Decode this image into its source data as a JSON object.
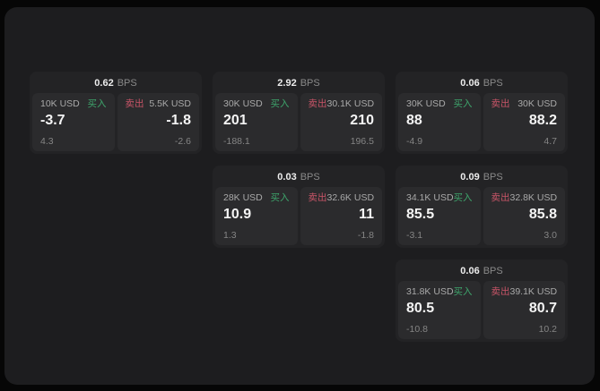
{
  "labels": {
    "bps_unit": "BPS",
    "buy": "买入",
    "sell": "卖出"
  },
  "colors": {
    "outer_background": "#060606",
    "window_background": "#1d1d1f",
    "card_background": "#232325",
    "panel_background": "#2b2b2d",
    "buy_green": "#3ea56c",
    "sell_red": "#c95568",
    "primary_text": "#f4f4f4",
    "muted_text": "#8a8a8a"
  },
  "cards": [
    {
      "col": 1,
      "row": 1,
      "bps": "0.62",
      "buy": {
        "size": "10K USD",
        "price": "-3.7",
        "delta": "4.3"
      },
      "sell": {
        "size": "5.5K USD",
        "price": "-1.8",
        "delta": "-2.6"
      }
    },
    {
      "col": 2,
      "row": 1,
      "bps": "2.92",
      "buy": {
        "size": "30K USD",
        "price": "201",
        "delta": "-188.1"
      },
      "sell": {
        "size": "30.1K USD",
        "price": "210",
        "delta": "196.5"
      }
    },
    {
      "col": 3,
      "row": 1,
      "bps": "0.06",
      "buy": {
        "size": "30K USD",
        "price": "88",
        "delta": "-4.9"
      },
      "sell": {
        "size": "30K USD",
        "price": "88.2",
        "delta": "4.7"
      }
    },
    {
      "col": 2,
      "row": 2,
      "bps": "0.03",
      "buy": {
        "size": "28K USD",
        "price": "10.9",
        "delta": "1.3"
      },
      "sell": {
        "size": "32.6K USD",
        "price": "11",
        "delta": "-1.8"
      }
    },
    {
      "col": 3,
      "row": 2,
      "bps": "0.09",
      "buy": {
        "size": "34.1K USD",
        "price": "85.5",
        "delta": "-3.1"
      },
      "sell": {
        "size": "32.8K USD",
        "price": "85.8",
        "delta": "3.0"
      }
    },
    {
      "col": 3,
      "row": 3,
      "bps": "0.06",
      "buy": {
        "size": "31.8K USD",
        "price": "80.5",
        "delta": "-10.8"
      },
      "sell": {
        "size": "39.1K USD",
        "price": "80.7",
        "delta": "10.2"
      }
    }
  ]
}
